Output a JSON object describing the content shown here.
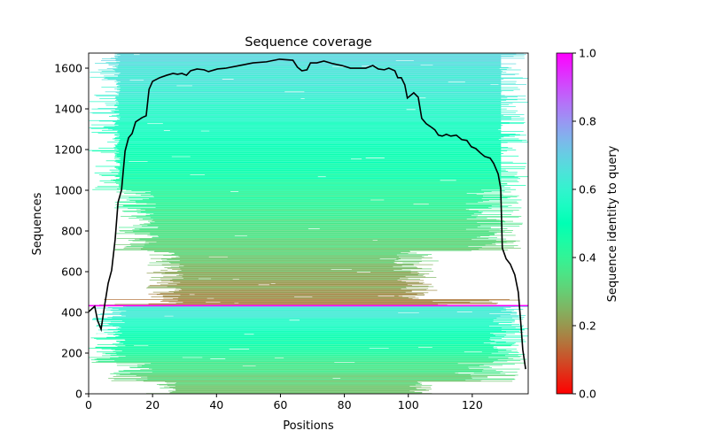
{
  "chart_data": {
    "type": "heatmap",
    "title": "Sequence coverage",
    "xlabel": "Positions",
    "ylabel": "Sequences",
    "xlim": [
      0,
      137.5
    ],
    "ylim": [
      0,
      1674
    ],
    "xticks": [
      0,
      20,
      40,
      60,
      80,
      100,
      120
    ],
    "yticks": [
      0,
      200,
      400,
      600,
      800,
      1000,
      1200,
      1400,
      1600
    ],
    "colorbar": {
      "label": "Sequence identity to query",
      "range": [
        0,
        1
      ],
      "ticks": [
        "0.0",
        "0.2",
        "0.4",
        "0.6",
        "0.8",
        "1.0"
      ],
      "colormap": "rainbow_r"
    },
    "query_row": 433,
    "blocks": [
      {
        "name": "lower",
        "seq_range": [
          0,
          433
        ],
        "identity_range": [
          0.28,
          0.66
        ]
      },
      {
        "name": "upper",
        "seq_range": [
          433,
          1674
        ],
        "identity_range": [
          0.15,
          0.68
        ]
      }
    ],
    "coverage_line": {
      "color": "#000000",
      "x": [
        0,
        1.9,
        2.8,
        3.9,
        5,
        6.1,
        7.2,
        8.3,
        9.2,
        10.3,
        11.4,
        12.5,
        13.6,
        14.7,
        16.7,
        18,
        18.9,
        20,
        22.2,
        24.4,
        26.4,
        27.8,
        29.2,
        30.6,
        31.9,
        33.9,
        36.1,
        37.5,
        40.3,
        43,
        47.2,
        51.4,
        55.6,
        59.7,
        63.9,
        65.3,
        66.7,
        68.3,
        69.4,
        71.4,
        73.6,
        76.4,
        79.2,
        81.9,
        84.7,
        86.7,
        88.9,
        90.6,
        92.5,
        93.9,
        95.8,
        96.7,
        97.8,
        98.9,
        99.7,
        101.7,
        103.1,
        104.2,
        105.6,
        107.2,
        108.3,
        109.4,
        110.6,
        111.9,
        113.3,
        115,
        116.7,
        118.3,
        119.7,
        121.1,
        122.5,
        123.9,
        125.6,
        126.7,
        128.1,
        128.9,
        129.4,
        130.6,
        131.9,
        133.3,
        134.4,
        135.3,
        135.8,
        136.7
      ],
      "y": [
        403,
        430,
        360,
        317,
        434,
        542,
        607,
        759,
        941,
        1002,
        1193,
        1258,
        1279,
        1336,
        1357,
        1366,
        1496,
        1535,
        1553,
        1565,
        1574,
        1570,
        1574,
        1565,
        1587,
        1596,
        1592,
        1583,
        1596,
        1600,
        1613,
        1626,
        1631,
        1644,
        1639,
        1605,
        1587,
        1592,
        1626,
        1626,
        1635,
        1622,
        1613,
        1600,
        1600,
        1600,
        1613,
        1596,
        1592,
        1600,
        1587,
        1553,
        1553,
        1518,
        1453,
        1479,
        1457,
        1353,
        1327,
        1310,
        1297,
        1271,
        1266,
        1275,
        1266,
        1271,
        1249,
        1245,
        1214,
        1205,
        1184,
        1166,
        1158,
        1132,
        1080,
        1010,
        716,
        663,
        637,
        585,
        499,
        325,
        217,
        121
      ]
    }
  }
}
